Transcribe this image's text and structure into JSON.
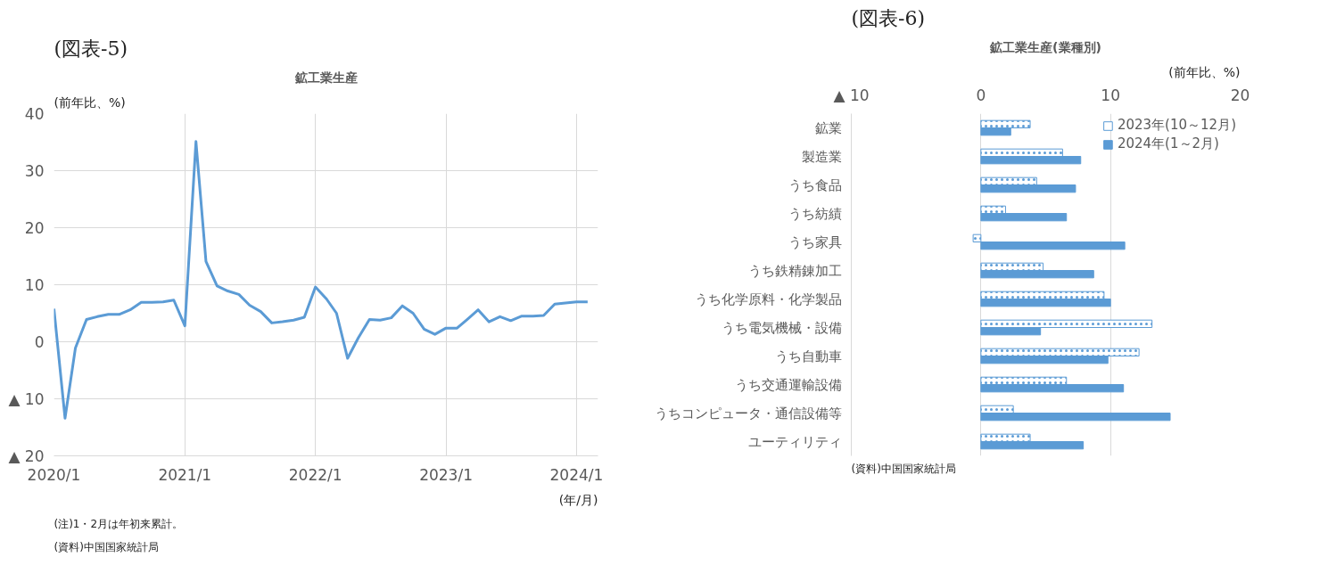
{
  "chart_data": [
    {
      "type": "line",
      "title": "鉱工業生産",
      "ylabel": "(前年比、%)",
      "xlabel": "(年/月)",
      "annotations": [
        "(図表-5)",
        "(注)1・2月は年初来累計。",
        "(資料)中国国家統計局"
      ],
      "x": [
        "2020-01",
        "2020-02",
        "2020-03",
        "2020-04",
        "2020-05",
        "2020-06",
        "2020-07",
        "2020-08",
        "2020-09",
        "2020-10",
        "2020-11",
        "2020-12",
        "2021-01",
        "2021-02",
        "2021-03",
        "2021-04",
        "2021-05",
        "2021-06",
        "2021-07",
        "2021-08",
        "2021-09",
        "2021-10",
        "2021-11",
        "2021-12",
        "2022-01",
        "2022-02",
        "2022-03",
        "2022-04",
        "2022-05",
        "2022-06",
        "2022-07",
        "2022-08",
        "2022-09",
        "2022-10",
        "2022-11",
        "2022-12",
        "2023-01",
        "2023-02",
        "2023-03",
        "2023-04",
        "2023-05",
        "2023-06",
        "2023-07",
        "2023-08",
        "2023-09",
        "2023-10",
        "2023-11",
        "2023-12",
        "2024-01",
        "2024-02"
      ],
      "series": [
        {
          "color": "#5b9bd5",
          "values": [
            5.8,
            -13.4,
            -1.1,
            3.9,
            4.4,
            4.8,
            4.8,
            5.6,
            6.9,
            6.9,
            7.0,
            7.3,
            2.8,
            35.1,
            14.1,
            9.8,
            8.9,
            8.3,
            6.4,
            5.3,
            3.3,
            3.5,
            3.8,
            4.3,
            9.6,
            7.5,
            5.0,
            -2.9,
            0.7,
            3.9,
            3.8,
            4.2,
            6.3,
            5.0,
            2.2,
            1.3,
            2.4,
            2.4,
            3.9,
            5.6,
            3.5,
            4.4,
            3.7,
            4.5,
            4.5,
            4.6,
            6.6,
            6.8,
            7.0,
            7.0
          ]
        }
      ],
      "xlim": [
        "2020-01",
        "2024-03"
      ],
      "xticks": [
        {
          "value": "2020-01",
          "label": "2020/1"
        },
        {
          "value": "2021-01",
          "label": "2021/1"
        },
        {
          "value": "2022-01",
          "label": "2022/1"
        },
        {
          "value": "2023-01",
          "label": "2023/1"
        },
        {
          "value": "2024-01",
          "label": "2024/1"
        }
      ],
      "ylim": [
        -20,
        40
      ],
      "yticks": [
        {
          "value": -20,
          "label": "▲ 20"
        },
        {
          "value": -10,
          "label": "▲ 10"
        },
        0,
        10,
        20,
        30,
        40
      ],
      "grid": true,
      "legend": false,
      "marker": "none",
      "line_style": "solid"
    },
    {
      "type": "bar",
      "orientation": "horizontal",
      "title": "鉱工業生産(業種別)",
      "xlabel": "(前年比、%)",
      "annotations": [
        "(図表-6)",
        "(資料)中国国家統計局"
      ],
      "categories": [
        "鉱業",
        "製造業",
        "うち食品",
        "うち紡績",
        "うち家具",
        "うち鉄精錬加工",
        "うち化学原料・化学製品",
        "うち電気機械・設備",
        "うち自動車",
        "うち交通運輸設備",
        "うちコンピュータ・通信設備等",
        "ユーティリティ"
      ],
      "series": [
        {
          "name": "2023年(10～12月)",
          "color": "#5b9bd5",
          "values": [
            3.8,
            6.3,
            4.3,
            1.9,
            -0.6,
            4.8,
            9.5,
            13.2,
            12.2,
            6.6,
            2.5,
            3.8
          ]
        },
        {
          "name": "2024年(1～2月)",
          "color": "#5b9bd5",
          "values": [
            2.3,
            7.7,
            7.3,
            6.6,
            11.1,
            8.7,
            10.0,
            4.6,
            9.8,
            11.0,
            14.6,
            7.9
          ]
        }
      ],
      "xlim": [
        -10,
        20
      ],
      "xticks": [
        {
          "value": -10,
          "label": "▲ 10"
        },
        0,
        10,
        20
      ],
      "grid": "x",
      "legend": "top right"
    }
  ]
}
